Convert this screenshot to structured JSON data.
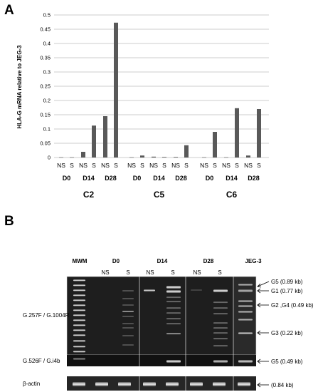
{
  "panel_a": {
    "label": "A"
  },
  "panel_b": {
    "label": "B"
  },
  "chart_data": {
    "type": "bar",
    "title": "",
    "ylabel": "HLA-G mRNA relative to JEG-3",
    "xlabel": "",
    "ylim": [
      0,
      0.5
    ],
    "yticks": [
      "0",
      "0.05",
      "0.1",
      "0.15",
      "0.2",
      "0.25",
      "0.3",
      "0.35",
      "0.4",
      "0.45",
      "0.5"
    ],
    "grid": true,
    "bar_color": "#595959",
    "groups": [
      {
        "name": "C2",
        "days": [
          "D0",
          "D14",
          "D28"
        ],
        "categories": [
          "NS",
          "S",
          "NS",
          "S",
          "NS",
          "S"
        ],
        "values": [
          0.001,
          0.001,
          0.02,
          0.112,
          0.145,
          0.473
        ]
      },
      {
        "name": "C5",
        "days": [
          "D0",
          "D14",
          "D28"
        ],
        "categories": [
          "NS",
          "S",
          "NS",
          "S",
          "NS",
          "S"
        ],
        "values": [
          0.001,
          0.007,
          0.003,
          0.002,
          0.002,
          0.043
        ]
      },
      {
        "name": "C6",
        "days": [
          "D0",
          "D14",
          "D28"
        ],
        "categories": [
          "NS",
          "S",
          "NS",
          "S",
          "NS",
          "S"
        ],
        "values": [
          0.001,
          0.09,
          0.001,
          0.173,
          0.007,
          0.17
        ]
      }
    ]
  },
  "gel": {
    "lane_groups": [
      "MWM",
      "D0",
      "D14",
      "D28",
      "JEG-3"
    ],
    "sublanes": [
      "NS",
      "S",
      "NS",
      "S",
      "NS",
      "S"
    ],
    "rows": [
      {
        "label": "G.257F / G.1004R"
      },
      {
        "label": "G.526F / G.i4b"
      },
      {
        "label": "β-actin"
      }
    ],
    "bands": [
      {
        "label": "G5 (0.89 kb)"
      },
      {
        "label": "G1 (0.77 kb)"
      },
      {
        "label": "G2 ,G4 (0.49 kb)"
      },
      {
        "label": "G3 (0.22 kb)"
      },
      {
        "label": "G5 (0.49 kb)"
      },
      {
        "label": "(0.84 kb)"
      }
    ]
  }
}
